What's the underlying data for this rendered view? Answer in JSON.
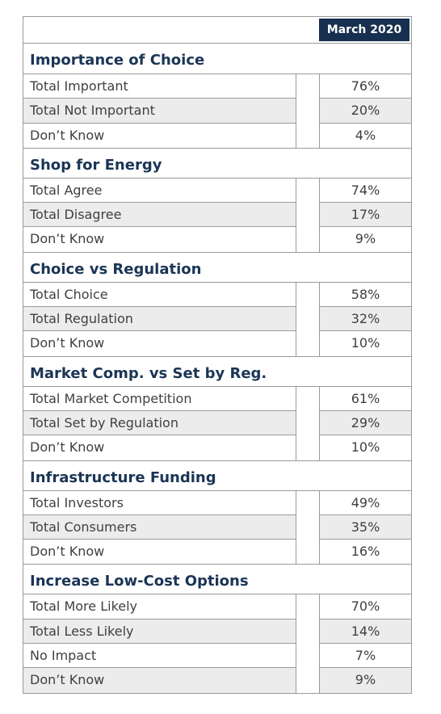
{
  "header": {
    "column": "March 2020"
  },
  "sections": [
    {
      "title": "Importance of Choice",
      "rows": [
        [
          "Total Important",
          "76%"
        ],
        [
          "Total Not Important",
          "20%"
        ],
        [
          "Don’t Know",
          "4%"
        ]
      ]
    },
    {
      "title": "Shop for Energy",
      "rows": [
        [
          "Total Agree",
          "74%"
        ],
        [
          "Total Disagree",
          "17%"
        ],
        [
          "Don’t Know",
          "9%"
        ]
      ]
    },
    {
      "title": "Choice vs Regulation",
      "rows": [
        [
          "Total Choice",
          "58%"
        ],
        [
          "Total Regulation",
          "32%"
        ],
        [
          "Don’t Know",
          "10%"
        ]
      ]
    },
    {
      "title": "Market Comp. vs Set by Reg.",
      "rows": [
        [
          "Total Market Competition",
          "61%"
        ],
        [
          "Total Set by Regulation",
          "29%"
        ],
        [
          "Don’t Know",
          "10%"
        ]
      ]
    },
    {
      "title": "Infrastructure Funding",
      "rows": [
        [
          "Total Investors",
          "49%"
        ],
        [
          "Total Consumers",
          "35%"
        ],
        [
          "Don’t Know",
          "16%"
        ]
      ]
    },
    {
      "title": "Increase Low-Cost Options",
      "rows": [
        [
          "Total More Likely",
          "70%"
        ],
        [
          "Total Less Likely",
          "14%"
        ],
        [
          "No Impact",
          "7%"
        ],
        [
          "Don’t Know",
          "9%"
        ]
      ]
    }
  ]
}
